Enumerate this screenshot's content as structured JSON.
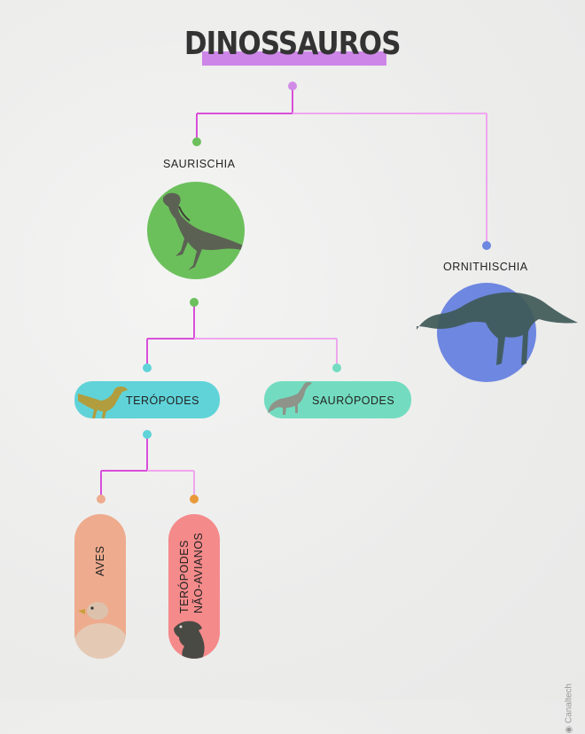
{
  "title": "DINOSSAUROS",
  "nodes": {
    "saurischia": "SAURISCHIA",
    "ornithischia": "ORNITHISCHIA",
    "teropodes": "TERÓPODES",
    "sauropodes": "SAURÓPODES",
    "aves": "AVES",
    "teropodes_nao_avianos_1": "TERÓPODES",
    "teropodes_nao_avianos_2": "NÃO-AVIANOS"
  },
  "watermark": "Canaltech",
  "colors": {
    "accent": "#d84fd9",
    "accent_light": "#efa6ee",
    "saurischia": "#6cc05c",
    "ornithischia": "#6e87e0",
    "teropodes": "#5fd3d8",
    "sauropodes": "#73dcc0",
    "aves": "#eeab8e",
    "nao_avianos": "#f58a8a",
    "dot_orange": "#e89a3a"
  }
}
